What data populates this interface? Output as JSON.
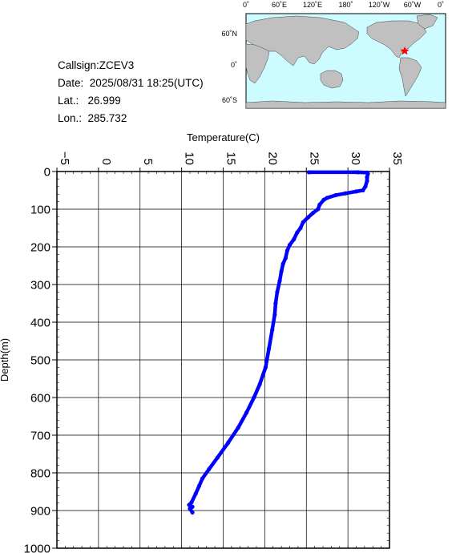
{
  "info": {
    "callsign": "Callsign:ZCEV3",
    "date": "Date:  2025/08/31 18:25(UTC)",
    "lat": "Lat.:   26.999",
    "lon": "Lon.:  285.732"
  },
  "map": {
    "top_labels": [
      "0˚",
      "60˚E",
      "120˚E",
      "180˚",
      "120˚W",
      "60˚W",
      "0˚"
    ],
    "left_labels": [
      "60˚N",
      "0˚",
      "60˚S"
    ],
    "ocean_color": "#ccfcff",
    "land_color": "#c0c0c0",
    "marker_color": "#ff0000",
    "marker_icon": "star-icon"
  },
  "chart_data": {
    "type": "line",
    "xlabel": "Temperature(C)",
    "ylabel": "Depth(m)",
    "xlim": [
      -5,
      35
    ],
    "ylim": [
      1000,
      0
    ],
    "x_ticks": [
      "−5",
      "0",
      "5",
      "10",
      "15",
      "20",
      "25",
      "30",
      "35"
    ],
    "y_ticks": [
      "0",
      "100",
      "200",
      "300",
      "400",
      "500",
      "600",
      "700",
      "800",
      "900",
      "1000"
    ],
    "grid": true,
    "series_color": "#0000ff",
    "series": [
      {
        "points": [
          [
            25.3,
            2
          ],
          [
            31.2,
            2
          ],
          [
            32.3,
            3
          ],
          [
            32.4,
            6
          ],
          [
            32.3,
            15
          ],
          [
            32.3,
            25
          ],
          [
            32.1,
            40
          ],
          [
            31.8,
            50
          ],
          [
            31.0,
            53
          ],
          [
            29.7,
            58
          ],
          [
            28.5,
            63
          ],
          [
            27.5,
            70
          ],
          [
            27.1,
            75
          ],
          [
            26.6,
            88
          ],
          [
            26.4,
            100
          ],
          [
            25.8,
            110
          ],
          [
            25.2,
            122
          ],
          [
            24.6,
            135
          ],
          [
            24.3,
            150
          ],
          [
            23.9,
            162
          ],
          [
            23.5,
            180
          ],
          [
            23.0,
            195
          ],
          [
            22.7,
            210
          ],
          [
            22.5,
            230
          ],
          [
            22.2,
            245
          ],
          [
            22.0,
            265
          ],
          [
            21.8,
            290
          ],
          [
            21.5,
            320
          ],
          [
            21.3,
            350
          ],
          [
            21.2,
            380
          ],
          [
            20.9,
            420
          ],
          [
            20.5,
            470
          ],
          [
            20.1,
            520
          ],
          [
            19.4,
            565
          ],
          [
            18.7,
            600
          ],
          [
            17.8,
            640
          ],
          [
            16.8,
            680
          ],
          [
            15.6,
            720
          ],
          [
            14.3,
            760
          ],
          [
            13.3,
            790
          ],
          [
            12.5,
            815
          ],
          [
            12.1,
            835
          ],
          [
            11.7,
            855
          ],
          [
            11.2,
            878
          ],
          [
            10.9,
            885
          ],
          [
            11.3,
            890
          ],
          [
            11.0,
            895
          ],
          [
            11.3,
            905
          ]
        ]
      }
    ]
  }
}
